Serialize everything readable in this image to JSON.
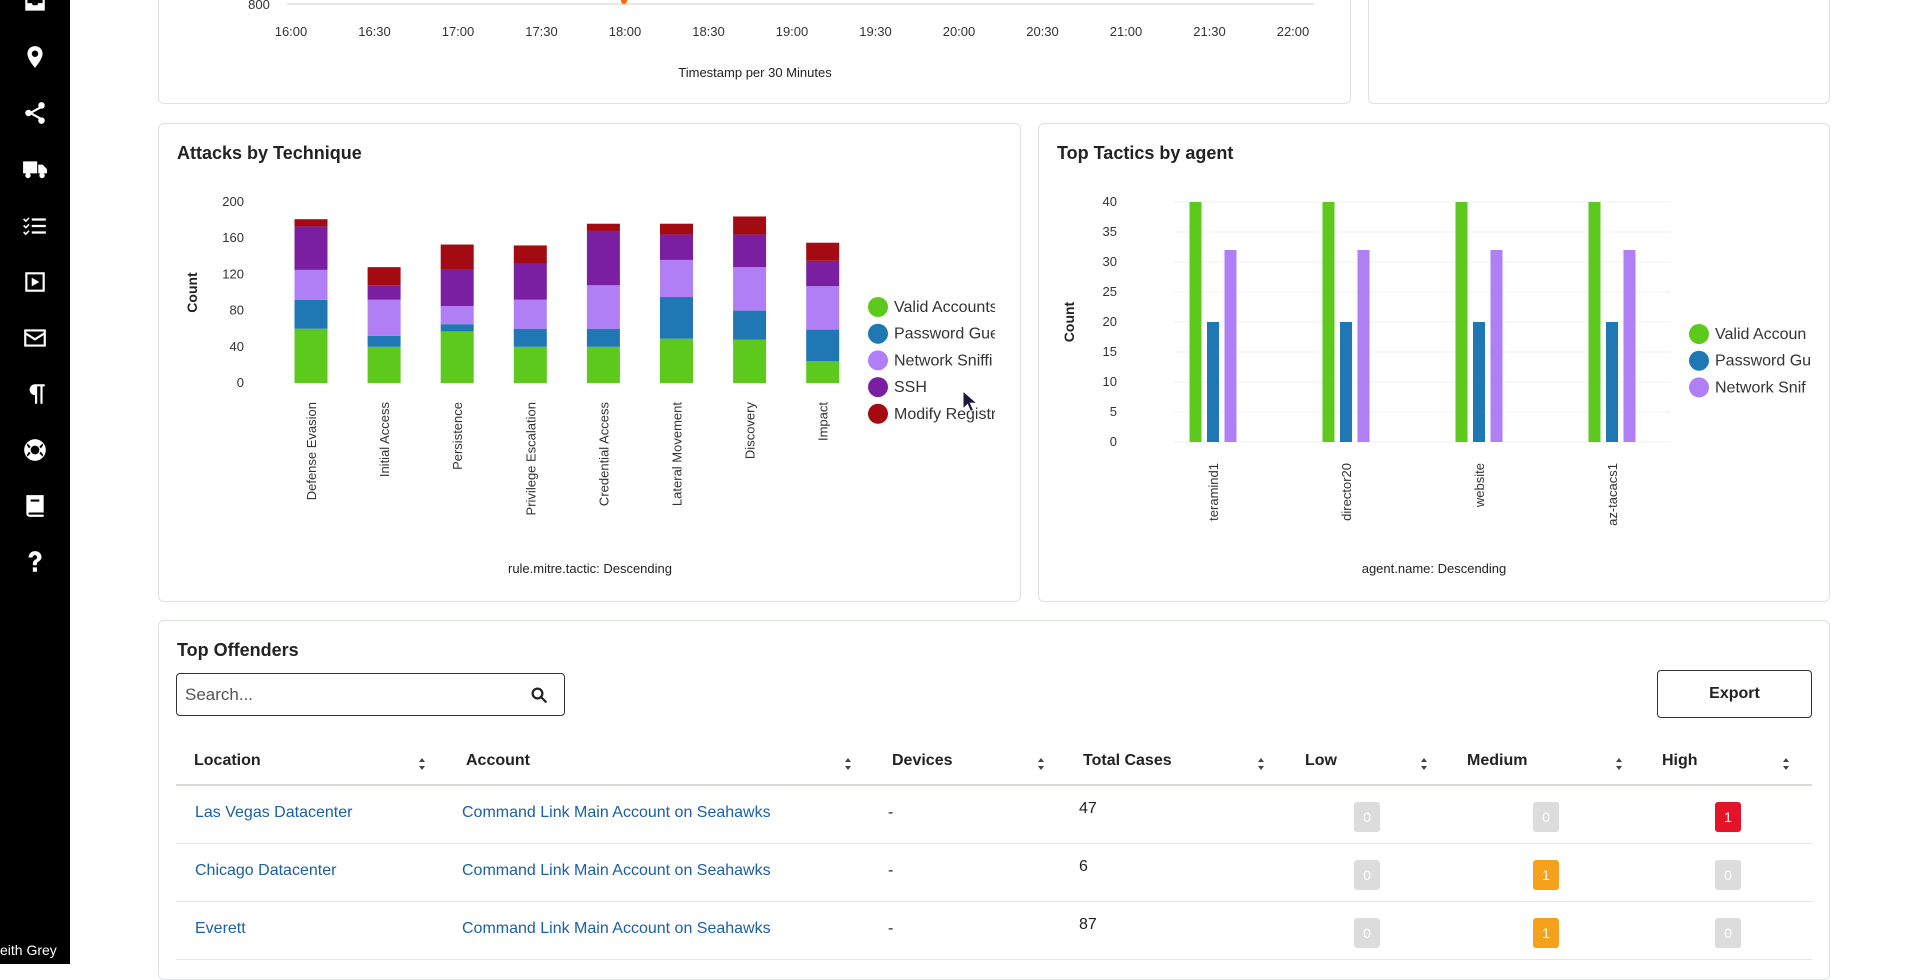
{
  "user": {
    "name": "eith Grey"
  },
  "sidebar": {
    "icons": [
      "inbox-icon",
      "location-pin-icon",
      "share-icon",
      "truck-icon",
      "task-list-icon",
      "play-square-icon",
      "mail-icon",
      "paragraph-icon",
      "lifebuoy-icon",
      "book-icon",
      "help-icon"
    ]
  },
  "timeline_panel": {
    "partial_tick": "800",
    "x_ticks": [
      "16:00",
      "16:30",
      "17:00",
      "17:30",
      "18:00",
      "18:30",
      "19:00",
      "19:30",
      "20:00",
      "20:30",
      "21:00",
      "21:30",
      "22:00"
    ],
    "xlabel": "Timestamp per 30 Minutes"
  },
  "technique_panel": {
    "title": "Attacks by Technique"
  },
  "tactics_panel": {
    "title": "Top Tactics by agent"
  },
  "chart_data": [
    {
      "type": "bar",
      "stacked": true,
      "title": "Attacks by Technique",
      "ylabel": "Count",
      "xlabel": "rule.mitre.tactic: Descending",
      "ylim": [
        0,
        200
      ],
      "y_ticks": [
        0,
        40,
        80,
        120,
        160,
        200
      ],
      "categories": [
        "Defense Evasion",
        "Initial Access",
        "Persistence",
        "Privilege Escalation",
        "Credential Access",
        "Lateral Movement",
        "Discovery",
        "Impact"
      ],
      "series": [
        {
          "name": "Valid Accounts",
          "legend_label": "Valid Accounts",
          "color": "#5dc91c",
          "values": [
            60,
            40,
            57,
            40,
            40,
            49,
            48,
            24
          ]
        },
        {
          "name": "Password Guessing",
          "legend_label": "Password Gue",
          "color": "#1f77b4",
          "values": [
            32,
            12,
            8,
            20,
            20,
            46,
            32,
            35
          ]
        },
        {
          "name": "Network Sniffing",
          "legend_label": "Network Sniffi",
          "color": "#b07ef5",
          "values": [
            33,
            40,
            20,
            32,
            48,
            41,
            48,
            48
          ]
        },
        {
          "name": "SSH",
          "legend_label": "SSH",
          "color": "#7b1fa2",
          "values": [
            48,
            16,
            40,
            40,
            60,
            28,
            36,
            28
          ]
        },
        {
          "name": "Modify Registry",
          "legend_label": "Modify Registr",
          "color": "#a30a12",
          "values": [
            8,
            20,
            28,
            20,
            8,
            12,
            20,
            20
          ]
        }
      ],
      "legend_position": "right"
    },
    {
      "type": "bar",
      "title": "Top Tactics by agent",
      "ylabel": "Count",
      "xlabel": "agent.name: Descending",
      "ylim": [
        0,
        40
      ],
      "y_ticks": [
        0,
        5,
        10,
        15,
        20,
        25,
        30,
        35,
        40
      ],
      "categories": [
        "teramind1",
        "director20",
        "website",
        "az-tacacs1"
      ],
      "series": [
        {
          "name": "Valid Accounts",
          "legend_label": "Valid Accoun",
          "color": "#5dc91c",
          "values": [
            40,
            40,
            40,
            40
          ]
        },
        {
          "name": "Password Guessing",
          "legend_label": "Password Gu",
          "color": "#1f77b4",
          "values": [
            20,
            20,
            20,
            20
          ]
        },
        {
          "name": "Network Sniffing",
          "legend_label": "Network Snif",
          "color": "#b07ef5",
          "values": [
            32,
            32,
            32,
            32
          ]
        }
      ],
      "legend_position": "right"
    }
  ],
  "offenders": {
    "title": "Top Offenders",
    "search_placeholder": "Search...",
    "export_label": "Export",
    "columns": [
      "Location",
      "Account",
      "Devices",
      "Total Cases",
      "Low",
      "Medium",
      "High"
    ],
    "rows": [
      {
        "location": "Las Vegas Datacenter",
        "account": "Command Link Main Account on Seahawks",
        "devices": "-",
        "total": "47",
        "low": "0",
        "medium": "0",
        "high": "1"
      },
      {
        "location": "Chicago Datacenter",
        "account": "Command Link Main Account on Seahawks",
        "devices": "-",
        "total": "6",
        "low": "0",
        "medium": "1",
        "high": "0"
      },
      {
        "location": "Everett",
        "account": "Command Link Main Account on Seahawks",
        "devices": "-",
        "total": "87",
        "low": "0",
        "medium": "1",
        "high": "0"
      }
    ]
  }
}
